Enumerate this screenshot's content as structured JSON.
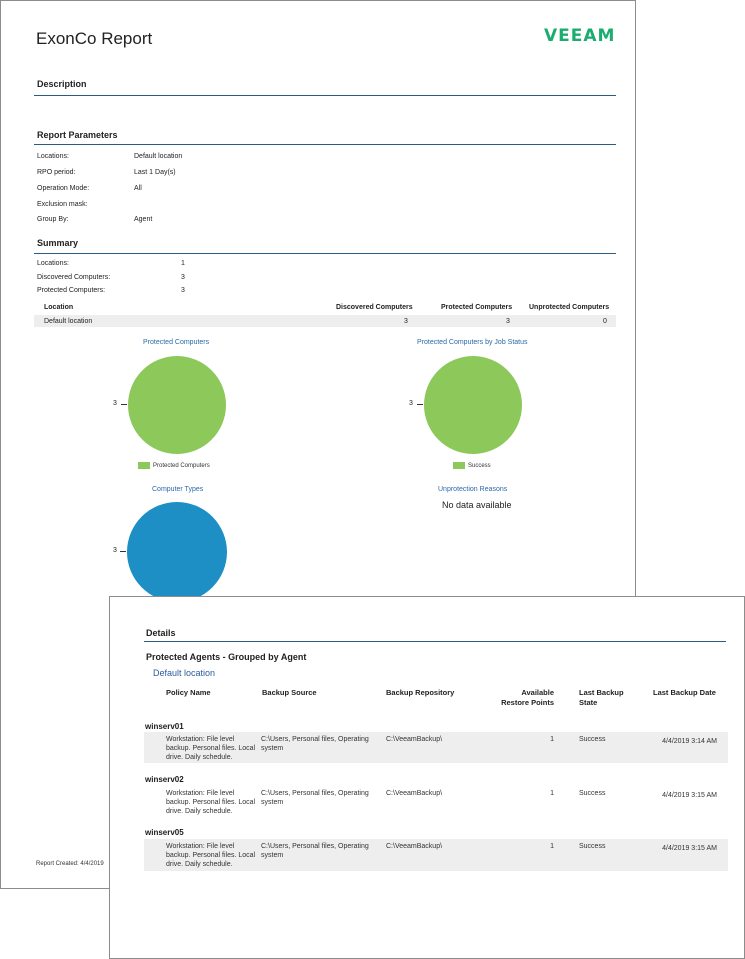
{
  "report": {
    "title": "ExonCo Report",
    "logo": "VEEAM",
    "description_heading": "Description",
    "parameters_heading": "Report Parameters",
    "parameters": [
      {
        "label": "Locations:",
        "value": "Default location"
      },
      {
        "label": "RPO period:",
        "value": "Last 1 Day(s)"
      },
      {
        "label": "Operation Mode:",
        "value": "All"
      },
      {
        "label": "Exclusion mask:",
        "value": ""
      },
      {
        "label": "Group By:",
        "value": "Agent"
      }
    ],
    "summary_heading": "Summary",
    "summary": [
      {
        "label": "Locations:",
        "value": "1"
      },
      {
        "label": "Discovered Computers:",
        "value": "3"
      },
      {
        "label": "Protected Computers:",
        "value": "3"
      }
    ],
    "location_table": {
      "headers": [
        "Location",
        "Discovered Computers",
        "Protected Computers",
        "Unprotected Computers"
      ],
      "rows": [
        [
          "Default location",
          "3",
          "3",
          "0"
        ]
      ]
    },
    "footer": "Report Created:  4/4/2019"
  },
  "charts": {
    "protected": {
      "title": "Protected Computers",
      "label": "3",
      "legend": "Protected Computers",
      "color": "#8cc85a"
    },
    "job_status": {
      "title": "Protected Computers by Job Status",
      "label": "3",
      "legend": "Success",
      "color": "#8cc85a"
    },
    "types": {
      "title": "Computer Types",
      "label": "3",
      "color": "#1e8fc4"
    },
    "unprotection": {
      "title": "Unprotection Reasons",
      "empty_text": "No data available"
    }
  },
  "chart_data": [
    {
      "type": "pie",
      "title": "Protected Computers",
      "categories": [
        "Protected Computers"
      ],
      "values": [
        3
      ],
      "legend": "bottom"
    },
    {
      "type": "pie",
      "title": "Protected Computers by Job Status",
      "categories": [
        "Success"
      ],
      "values": [
        3
      ],
      "legend": "bottom"
    },
    {
      "type": "pie",
      "title": "Computer Types",
      "categories": [
        ""
      ],
      "values": [
        3
      ]
    }
  ],
  "details": {
    "heading": "Details",
    "subheading": "Protected Agents - Grouped by Agent",
    "location": "Default location",
    "headers": {
      "policy": "Policy Name",
      "source": "Backup Source",
      "repo": "Backup Repository",
      "points_1": "Available",
      "points_2": "Restore Points",
      "state_1": "Last Backup",
      "state_2": "State",
      "date": "Last  Backup Date"
    },
    "agents": [
      {
        "name": "winserv01",
        "policy": "Workstation: File level backup. Personal files. Local drive. Daily schedule.",
        "source": "C:\\Users, Personal files, Operating system",
        "repo": "C:\\VeeamBackup\\",
        "points": "1",
        "state": "Success",
        "date": "4/4/2019 3:14 AM"
      },
      {
        "name": "winserv02",
        "policy": "Workstation: File level backup. Personal files. Local drive. Daily schedule.",
        "source": "C:\\Users, Personal files, Operating system",
        "repo": "C:\\VeeamBackup\\",
        "points": "1",
        "state": "Success",
        "date": "4/4/2019 3:15 AM"
      },
      {
        "name": "winserv05",
        "policy": "Workstation: File level backup. Personal files. Local drive. Daily schedule.",
        "source": "C:\\Users, Personal files, Operating system",
        "repo": "C:\\VeeamBackup\\",
        "points": "1",
        "state": "Success",
        "date": "4/4/2019 3:15 AM"
      }
    ]
  }
}
